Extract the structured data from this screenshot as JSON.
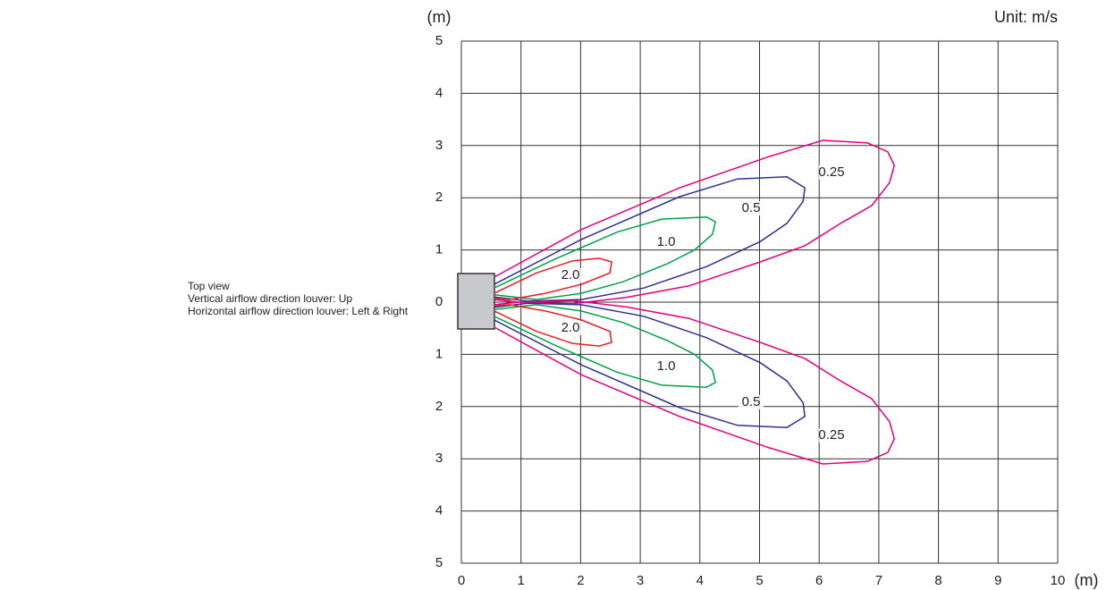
{
  "chart_data": {
    "type": "contour",
    "y_label": "(m)",
    "x_label": "(m)",
    "unit_note": "Unit: m/s",
    "notes": [
      "Top view",
      "Vertical airflow direction louver: Up",
      "Horizontal airflow direction louver: Left & Right"
    ],
    "xlim": [
      0,
      10
    ],
    "ylim": [
      -5,
      5
    ],
    "xticks": [
      0,
      1,
      2,
      3,
      4,
      5,
      6,
      7,
      8,
      9,
      10
    ],
    "yticks": [
      {
        "value": -5,
        "label": "5"
      },
      {
        "value": -4,
        "label": "4"
      },
      {
        "value": -3,
        "label": "3"
      },
      {
        "value": -2,
        "label": "2"
      },
      {
        "value": -1,
        "label": "1"
      },
      0,
      1,
      2,
      3,
      4,
      5
    ],
    "grid": true,
    "series": [
      {
        "level": 0.25,
        "level_label": "0.25",
        "color": "#e6007e",
        "x": [
          0.55,
          2.01,
          3.66,
          5.16,
          6.06,
          6.81,
          7.15,
          7.26,
          7.18,
          6.88,
          6.36,
          5.76,
          5.01,
          3.81,
          2.76,
          1.86,
          0.96,
          0.55
        ],
        "y": [
          0.48,
          1.39,
          2.19,
          2.79,
          3.1,
          3.05,
          2.88,
          2.62,
          2.29,
          1.85,
          1.51,
          1.08,
          0.77,
          0.31,
          0.09,
          -0.03,
          0,
          0.05
        ]
      },
      {
        "level": 0.5,
        "level_label": "0.5",
        "color": "#2e3192",
        "x": [
          0.55,
          2.01,
          3.66,
          4.63,
          5.46,
          5.76,
          5.73,
          5.46,
          5.01,
          4.11,
          3.06,
          2.01,
          1.11,
          0.55
        ],
        "y": [
          0.34,
          1.2,
          2.02,
          2.36,
          2.4,
          2.19,
          1.93,
          1.51,
          1.16,
          0.68,
          0.27,
          0.05,
          0.02,
          0.1
        ]
      },
      {
        "level": 1.0,
        "level_label": "1.0",
        "color": "#00a14b",
        "x": [
          0.55,
          1.56,
          2.61,
          3.36,
          4.11,
          4.26,
          4.21,
          3.91,
          3.46,
          2.71,
          2.01,
          1.26,
          0.55
        ],
        "y": [
          0.27,
          0.82,
          1.34,
          1.59,
          1.63,
          1.54,
          1.3,
          1.0,
          0.74,
          0.39,
          0.17,
          0.05,
          0.14
        ]
      },
      {
        "level": 2.0,
        "level_label": "2.0",
        "color": "#ed1c24",
        "x": [
          0.55,
          1.26,
          1.86,
          2.31,
          2.52,
          2.49,
          2.01,
          1.41,
          0.81,
          0.55
        ],
        "y": [
          0.17,
          0.56,
          0.79,
          0.84,
          0.77,
          0.56,
          0.34,
          0.17,
          0.05,
          0.07
        ]
      },
      {
        "level": 0.25,
        "level_label": "0.25",
        "color": "#e6007e",
        "x": [
          0.55,
          2.01,
          3.66,
          5.16,
          6.06,
          6.81,
          7.15,
          7.26,
          7.18,
          6.88,
          6.36,
          5.76,
          5.01,
          3.81,
          2.76,
          1.86,
          0.96,
          0.55
        ],
        "y": [
          -0.48,
          -1.39,
          -2.19,
          -2.79,
          -3.1,
          -3.05,
          -2.88,
          -2.62,
          -2.29,
          -1.85,
          -1.51,
          -1.08,
          -0.77,
          -0.31,
          -0.09,
          0.03,
          0,
          -0.05
        ]
      },
      {
        "level": 0.5,
        "level_label": "0.5",
        "color": "#2e3192",
        "x": [
          0.55,
          2.01,
          3.66,
          4.63,
          5.46,
          5.76,
          5.73,
          5.46,
          5.01,
          4.11,
          3.06,
          2.01,
          1.11,
          0.55
        ],
        "y": [
          -0.34,
          -1.2,
          -2.02,
          -2.36,
          -2.4,
          -2.19,
          -1.93,
          -1.51,
          -1.16,
          -0.68,
          -0.27,
          -0.05,
          -0.02,
          -0.1
        ]
      },
      {
        "level": 1.0,
        "level_label": "1.0",
        "color": "#00a14b",
        "x": [
          0.55,
          1.56,
          2.61,
          3.36,
          4.11,
          4.26,
          4.21,
          3.91,
          3.46,
          2.71,
          2.01,
          1.26,
          0.55
        ],
        "y": [
          -0.27,
          -0.82,
          -1.34,
          -1.59,
          -1.63,
          -1.54,
          -1.3,
          -1.0,
          -0.74,
          -0.39,
          -0.17,
          -0.05,
          -0.14
        ]
      },
      {
        "level": 2.0,
        "level_label": "2.0",
        "color": "#ed1c24",
        "x": [
          0.55,
          1.26,
          1.86,
          2.31,
          2.52,
          2.49,
          2.01,
          1.41,
          0.81,
          0.55
        ],
        "y": [
          -0.17,
          -0.56,
          -0.79,
          -0.84,
          -0.77,
          -0.56,
          -0.34,
          -0.17,
          -0.05,
          -0.07
        ]
      }
    ]
  }
}
